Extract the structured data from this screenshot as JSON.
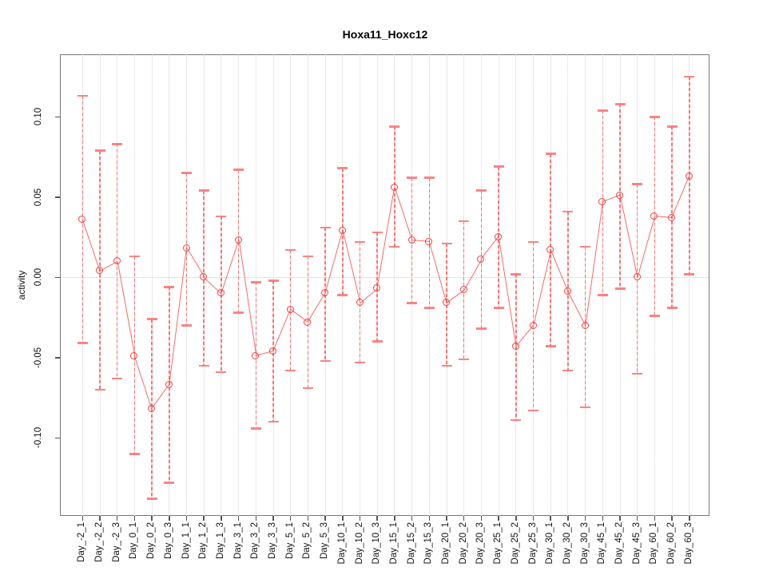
{
  "title": "Hoxa11_Hoxc12",
  "chart_data": {
    "type": "scatter",
    "title": "Hoxa11_Hoxc12",
    "xlabel": "",
    "ylabel": "activity",
    "legend_position": "none",
    "grid": {
      "vertical": "dotted at every category",
      "horizontal": "dotted line at y=0"
    },
    "point_style": "open circle with error bars, connected by line",
    "series_color": "#f0413e",
    "ylim": [
      -0.149,
      0.139
    ],
    "y_ticks": [
      {
        "label": "-0.10",
        "value": -0.1
      },
      {
        "label": "-0.05",
        "value": -0.05
      },
      {
        "label": "0.00",
        "value": 0.0
      },
      {
        "label": "0.05",
        "value": 0.05
      },
      {
        "label": "0.10",
        "value": 0.1
      }
    ],
    "categories": [
      "Day_-2_1",
      "Day_-2_2",
      "Day_-2_3",
      "Day_0_1",
      "Day_0_2",
      "Day_0_3",
      "Day_1_1",
      "Day_1_2",
      "Day_1_3",
      "Day_3_1",
      "Day_3_2",
      "Day_3_3",
      "Day_5_1",
      "Day_5_2",
      "Day_5_3",
      "Day_10_1",
      "Day_10_2",
      "Day_10_3",
      "Day_15_1",
      "Day_15_2",
      "Day_15_3",
      "Day_20_1",
      "Day_20_2",
      "Day_20_3",
      "Day_25_1",
      "Day_25_2",
      "Day_25_3",
      "Day_30_1",
      "Day_30_2",
      "Day_30_3",
      "Day_45_1",
      "Day_45_2",
      "Day_45_3",
      "Day_60_1",
      "Day_60_2",
      "Day_60_3"
    ],
    "values": [
      0.036,
      0.004,
      0.01,
      -0.049,
      -0.082,
      -0.067,
      0.018,
      0.0,
      -0.01,
      0.023,
      -0.049,
      -0.046,
      -0.02,
      -0.028,
      -0.01,
      0.029,
      -0.016,
      -0.007,
      0.056,
      0.023,
      0.022,
      -0.016,
      -0.008,
      0.011,
      0.025,
      -0.043,
      -0.03,
      0.017,
      -0.009,
      -0.03,
      0.047,
      0.051,
      0.0,
      0.038,
      0.037,
      0.063
    ],
    "err_hi": [
      0.113,
      0.079,
      0.083,
      0.013,
      -0.026,
      -0.006,
      0.065,
      0.054,
      0.038,
      0.067,
      -0.003,
      -0.002,
      0.017,
      0.013,
      0.031,
      0.068,
      0.022,
      0.028,
      0.094,
      0.062,
      0.062,
      0.021,
      0.035,
      0.054,
      0.069,
      0.002,
      0.022,
      0.077,
      0.041,
      0.019,
      0.104,
      0.108,
      0.058,
      0.1,
      0.094,
      0.125
    ],
    "err_lo": [
      -0.041,
      -0.07,
      -0.063,
      -0.11,
      -0.138,
      -0.128,
      -0.03,
      -0.055,
      -0.059,
      -0.022,
      -0.094,
      -0.09,
      -0.058,
      -0.069,
      -0.052,
      -0.011,
      -0.053,
      -0.04,
      0.019,
      -0.016,
      -0.019,
      -0.055,
      -0.051,
      -0.032,
      -0.019,
      -0.089,
      -0.083,
      -0.043,
      -0.058,
      -0.081,
      -0.011,
      -0.007,
      -0.06,
      -0.024,
      -0.019,
      0.002
    ]
  },
  "colors": {
    "series": "#f0413e",
    "error_bar": "rgba(243,78,76,0.75)",
    "error_cap": "rgba(247,120,118,0.9)",
    "grid": "#d4d4d4",
    "axis": "#555555",
    "box": "#777777",
    "background": "#ffffff",
    "text": "#111111"
  }
}
